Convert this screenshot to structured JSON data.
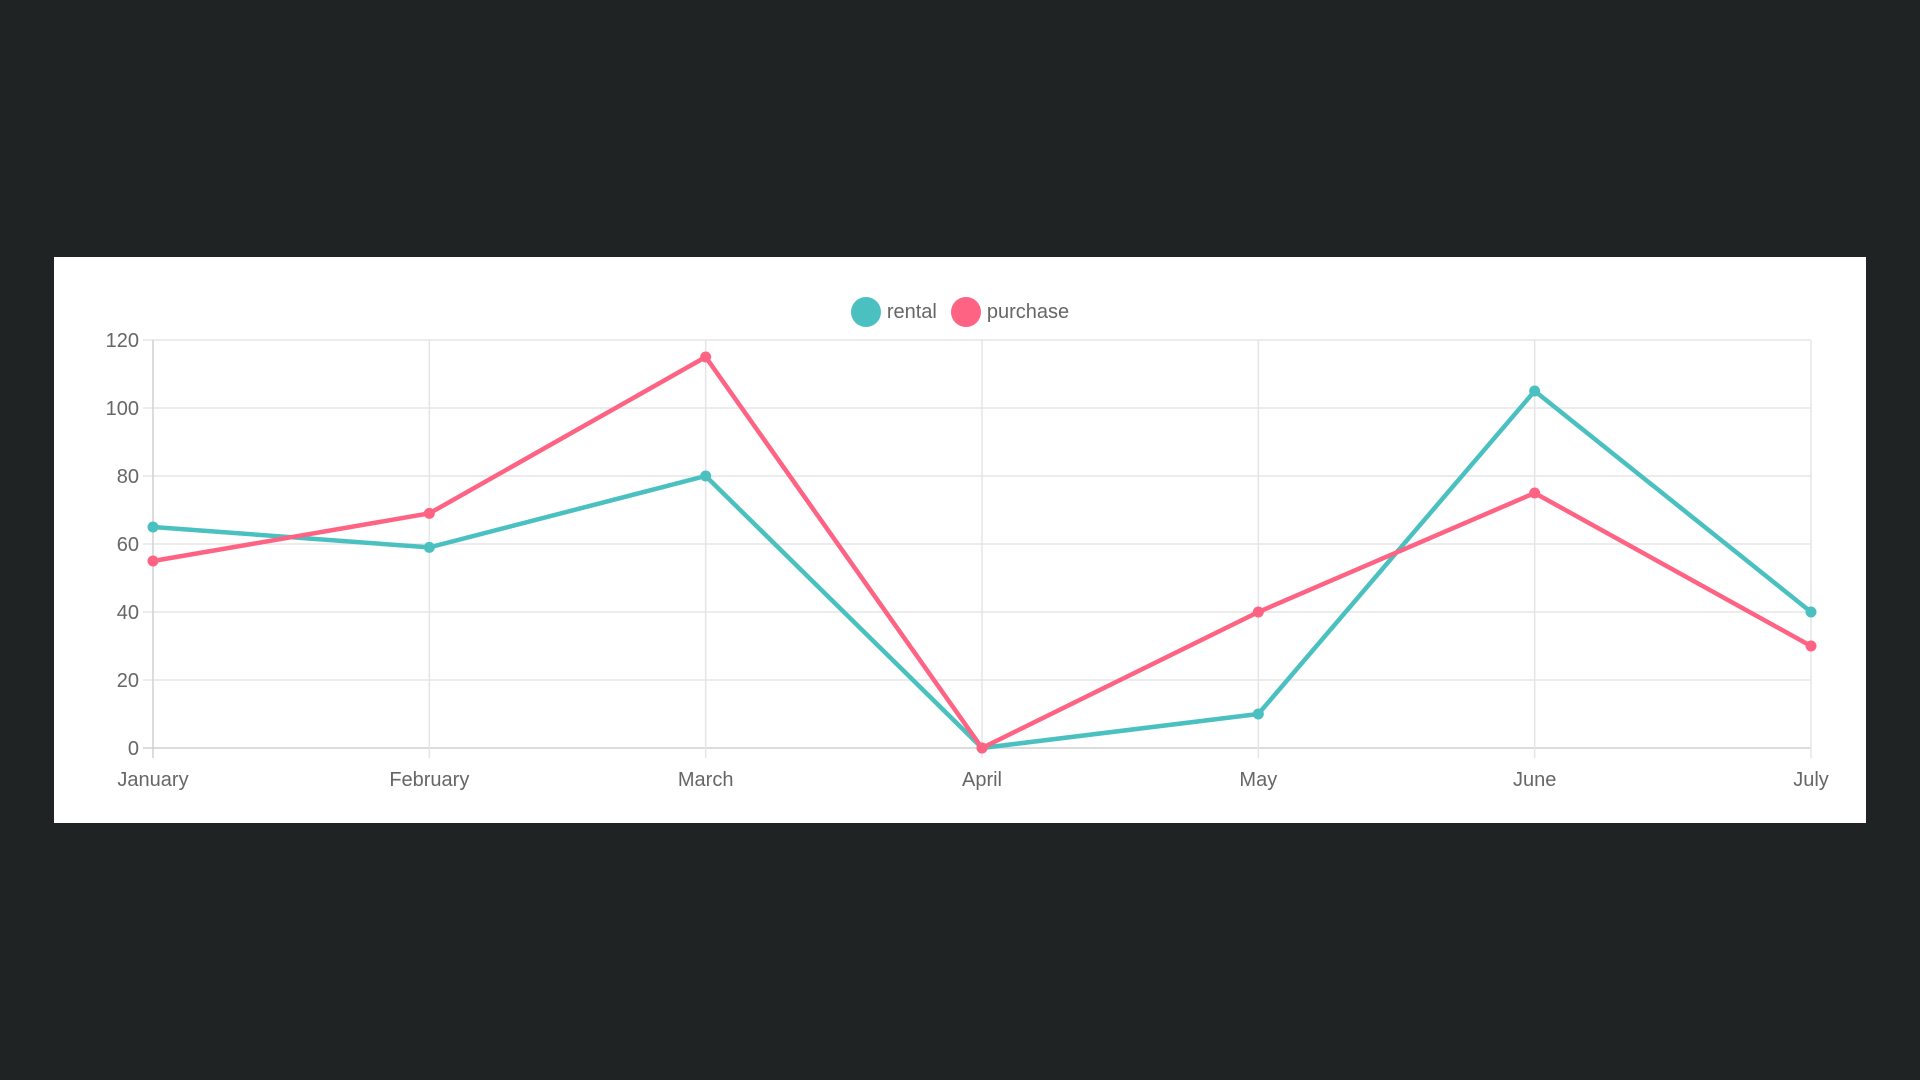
{
  "colors": {
    "background": "#1f2324",
    "panel": "#ffffff",
    "grid": "#e5e5e5",
    "text": "#666666",
    "rental": "#4bc0c0",
    "purchase": "#ff6384"
  },
  "legend": {
    "items": [
      {
        "label": "rental",
        "color": "#4bc0c0"
      },
      {
        "label": "purchase",
        "color": "#ff6384"
      }
    ]
  },
  "chart_data": {
    "type": "line",
    "title": "",
    "xlabel": "",
    "ylabel": "",
    "categories": [
      "January",
      "February",
      "March",
      "April",
      "May",
      "June",
      "July"
    ],
    "series": [
      {
        "name": "rental",
        "color": "#4bc0c0",
        "values": [
          65,
          59,
          80,
          0,
          10,
          105,
          40
        ]
      },
      {
        "name": "purchase",
        "color": "#ff6384",
        "values": [
          55,
          69,
          115,
          0,
          40,
          75,
          30
        ]
      }
    ],
    "ylim": [
      0,
      120
    ],
    "yticks": [
      0,
      20,
      40,
      60,
      80,
      100,
      120
    ],
    "grid": true,
    "legend_position": "top"
  }
}
